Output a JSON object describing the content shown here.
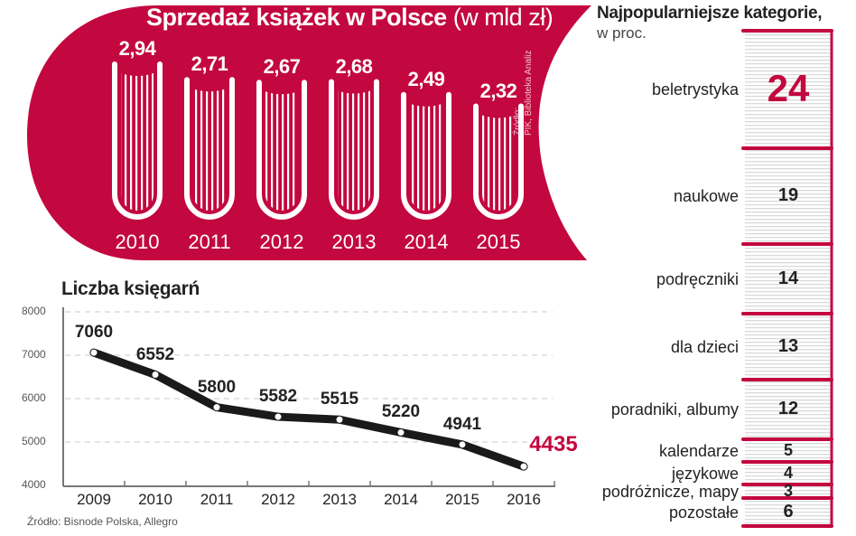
{
  "colors": {
    "accent": "#C3073F",
    "text": "#222222",
    "grid": "#bbbbbb",
    "line": "#1a1a1a"
  },
  "book_sales": {
    "title_bold": "Sprzedaż książek w Polsce",
    "title_unit": "(w mld zł)",
    "source_line1": "Źródło:",
    "source_line2": "PIK, Biblioteka Analiz",
    "items": [
      {
        "year": "2010",
        "value": "2,94"
      },
      {
        "year": "2011",
        "value": "2,71"
      },
      {
        "year": "2012",
        "value": "2,67"
      },
      {
        "year": "2013",
        "value": "2,68"
      },
      {
        "year": "2014",
        "value": "2,49"
      },
      {
        "year": "2015",
        "value": "2,32"
      }
    ]
  },
  "categories": {
    "title": "Najpopularniejsze kategorie,",
    "subtitle": "w proc.",
    "items": [
      {
        "label": "beletrystyka",
        "value": "24"
      },
      {
        "label": "naukowe",
        "value": "19"
      },
      {
        "label": "podręczniki",
        "value": "14"
      },
      {
        "label": "dla dzieci",
        "value": "13"
      },
      {
        "label": "poradniki, albumy",
        "value": "12"
      },
      {
        "label": "kalendarze",
        "value": "5"
      },
      {
        "label": "językowe",
        "value": "4"
      },
      {
        "label": "podróżnicze, mapy",
        "value": "3"
      },
      {
        "label": "pozostałe",
        "value": "6"
      }
    ]
  },
  "bookstores": {
    "title": "Liczba księgarń",
    "source": "Źródło: Bisnode Polska, Allegro",
    "y_ticks": [
      "8000",
      "7000",
      "6000",
      "5000",
      "4000"
    ],
    "years": [
      "2009",
      "2010",
      "2011",
      "2012",
      "2013",
      "2014",
      "2015",
      "2016"
    ],
    "values": [
      "7060",
      "6552",
      "5800",
      "5582",
      "5515",
      "5220",
      "4941",
      "4435"
    ]
  },
  "chart_data": [
    {
      "type": "bar",
      "title": "Sprzedaż książek w Polsce (w mld zł)",
      "categories": [
        "2010",
        "2011",
        "2012",
        "2013",
        "2014",
        "2015"
      ],
      "values": [
        2.94,
        2.71,
        2.67,
        2.68,
        2.49,
        2.32
      ],
      "xlabel": "",
      "ylabel": "mld zł",
      "source": "Źródło: PIK, Biblioteka Analiz"
    },
    {
      "type": "line",
      "title": "Liczba księgarń",
      "x": [
        "2009",
        "2010",
        "2011",
        "2012",
        "2013",
        "2014",
        "2015",
        "2016"
      ],
      "values": [
        7060,
        6552,
        5800,
        5582,
        5515,
        5220,
        4941,
        4435
      ],
      "ylim": [
        4000,
        8000
      ],
      "yticks": [
        4000,
        5000,
        6000,
        7000,
        8000
      ],
      "grid": true,
      "source": "Źródło: Bisnode Polska, Allegro"
    },
    {
      "type": "bar",
      "title": "Najpopularniejsze kategorie, w proc.",
      "categories": [
        "beletrystyka",
        "naukowe",
        "podręczniki",
        "dla dzieci",
        "poradniki, albumy",
        "kalendarze",
        "językowe",
        "podróżnicze, mapy",
        "pozostałe"
      ],
      "values": [
        24,
        19,
        14,
        13,
        12,
        5,
        4,
        3,
        6
      ],
      "orientation": "stacked-vertical",
      "unit": "%"
    }
  ]
}
